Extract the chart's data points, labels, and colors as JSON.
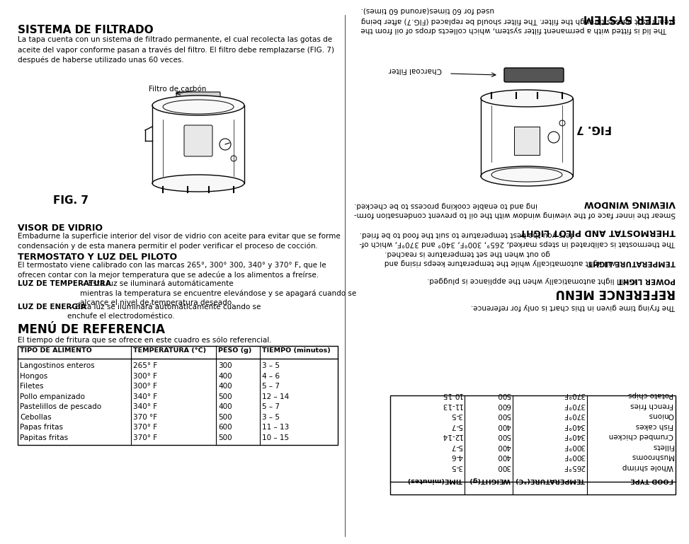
{
  "bg_color": "#ffffff",
  "page_width": 9.54,
  "page_height": 7.38,
  "left_col": {
    "sistema_title": "SISTEMA DE FILTRADO",
    "sistema_body": "La tapa cuenta con un sistema de filtrado permanente, el cual recolecta las gotas de\naceite del vapor conforme pasan a través del filtro. El filtro debe remplazarse (FIG. 7)\ndespués de haberse utilizado unas 60 veces.",
    "fig7_label": "FIG. 7",
    "filtro_label": "Filtro de carbón",
    "visor_title": "VISOR DE VIDRIO",
    "visor_body": "Embadurne la superficie interior del visor de vidrio con aceite para evitar que se forme\ncondensación y de esta manera permitir el poder verificar el proceso de cocción.",
    "termo_title": "TERMOSTATO Y LUZ DEL PILOTO",
    "termo_body": "El termostato viene calibrado con las marcas 265°, 300° 300, 340° y 370° F, que le\nofrecen contar con la mejor temperatura que se adecúe a los alimentos a freírse.",
    "luz_temp_bold": "LUZ DE TEMPERATURA",
    "luz_temp_body": " – Esta luz se iluminará automáticamente\nmientras la temperatura se encuentre elevándose y se apagará cuando se\nalcance el nivel de temperatura deseado.",
    "luz_ener_bold": "LUZ DE ENERGÍA",
    "luz_ener_body": " – Esta luz se iluminará automáticamente cuando se\nenchufe el electrodoméstico.",
    "menu_title": "MENÚ DE REFERENCIA",
    "menu_body": "El tiempo de fritura que se ofrece en este cuadro es sólo referencial.",
    "table_headers": [
      "TIPO DE ALIMENTO",
      "TEMPERATURA (°C)",
      "PESO (g)",
      "TIEMPO (minutos)"
    ],
    "table_rows": [
      [
        "Langostinos enteros",
        "265° F",
        "300",
        "3 – 5"
      ],
      [
        "Hongos",
        "300° F",
        "400",
        "4 – 6"
      ],
      [
        "Filetes",
        "300° F",
        "400",
        "5 – 7"
      ],
      [
        "Pollo empanizado",
        "340° F",
        "500",
        "12 – 14"
      ],
      [
        "Pastelillos de pescado",
        "340° F",
        "400",
        "5 – 7"
      ],
      [
        "Cebollas",
        "370 °F",
        "500",
        "3 – 5"
      ],
      [
        "Papas fritas",
        "370° F",
        "600",
        "11 – 13"
      ],
      [
        "Papitas fritas",
        "370° F",
        "500",
        "10 – 15"
      ]
    ]
  },
  "right_col": {
    "filter_title": "FILTER SYSTEM",
    "filter_body": "The lid is fitted with a permanent filter system, which collects drops of oil from the\nsteam as it passes through the filter. The filter should be replaced (FIG.7) after being\nused for 60 times(around 60 times).",
    "fig7_label": "FIG. 7",
    "charcoal_label": "Charcoal Filter",
    "viewing_title": "VIEWING WINDOW",
    "viewing_body": "Smear the inner face of the viewing window with the oil to prevent condensation form-\ning and to enable cooking process to be checked.",
    "thermo_title": "THERMOSTAT AND PILOT LIGHT",
    "thermo_body": "The thermostat is calibrated in steps marked, 265°, 300°F, 340° and 370°F, which of-\nfers you the best temperature to suit the food to be fried.",
    "temp_light_bold": "TEMPERATURE LIGHT",
    "temp_light_body": " will light automatically while the temperature keeps rising and\ngo out when the set temperature is reached.",
    "power_light_bold": "POWER LIGHT",
    "power_light_body": " it will light automatically when the appliance is plugged.",
    "ref_title": "REFERENCE MENU",
    "ref_body": "The frying time given in this chart is only for reference.",
    "table_headers_en": [
      "FOOD TYPE",
      "TEMPERATURE(°C)",
      "WEIGHT(g)",
      "TIME(minutes)"
    ],
    "table_rows_en": [
      [
        "Whole shrimp",
        "265°F",
        "300",
        "3-5"
      ],
      [
        "Mushrooms",
        "300°F",
        "400",
        "4-6"
      ],
      [
        "Fillets",
        "300°F",
        "400",
        "5-7"
      ],
      [
        "Crumbed chicken",
        "340°F",
        "500",
        "12-14"
      ],
      [
        "Fish cakes",
        "340°F",
        "400",
        "5-7"
      ],
      [
        "Onions",
        "370°F",
        "500",
        "3-5"
      ],
      [
        "French fries",
        "370°F",
        "600",
        "11-13"
      ],
      [
        "Potato chips",
        "370°F",
        "500",
        "10-15"
      ]
    ]
  }
}
